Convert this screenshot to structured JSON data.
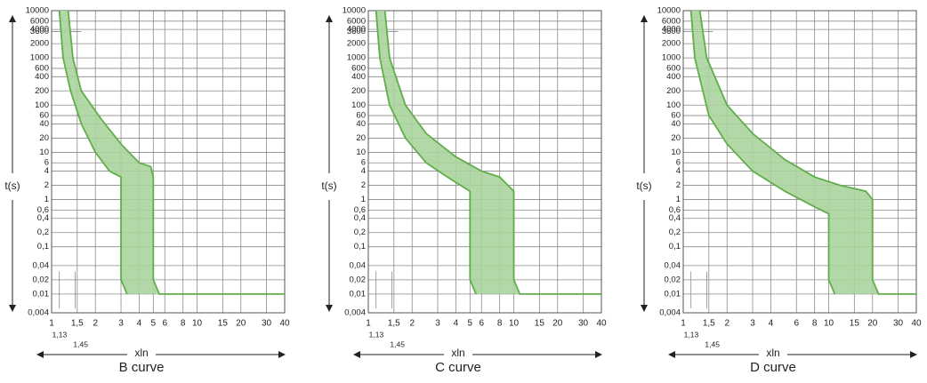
{
  "chart_data": [
    {
      "type": "band",
      "title": "B curve",
      "xlabel": "xln",
      "ylabel": "t(s)",
      "xscale": "log",
      "yscale": "log",
      "xlim": [
        1,
        40
      ],
      "ylim": [
        0.004,
        10000
      ],
      "xticks": [
        1,
        {
          "value": 1.5,
          "label": "1,5"
        },
        2,
        3,
        4,
        5,
        6,
        8,
        10,
        15,
        20,
        30,
        40
      ],
      "xticks_extra": [
        {
          "value": 1.13,
          "label": "1,13"
        },
        {
          "value": 1.45,
          "label": "1,45"
        }
      ],
      "yticks": [
        10000,
        6000,
        4000,
        2000,
        1000,
        600,
        400,
        200,
        100,
        60,
        40,
        20,
        10,
        6,
        4,
        2,
        1,
        {
          "value": 0.6,
          "label": "0,6"
        },
        {
          "value": 0.4,
          "label": "0,4"
        },
        {
          "value": 0.2,
          "label": "0,2"
        },
        {
          "value": 0.1,
          "label": "0,1"
        },
        {
          "value": 0.04,
          "label": "0,04"
        },
        {
          "value": 0.02,
          "label": "0,02"
        },
        {
          "value": 0.01,
          "label": "0,01"
        },
        {
          "value": 0.004,
          "label": "0,004"
        }
      ],
      "y_marker": {
        "value": 3600,
        "label": "3600",
        "x_end": 1.6
      },
      "color": "#5fae4a",
      "fill": "#a8d49c",
      "grid": true,
      "lower": {
        "x": [
          1.13,
          1.2,
          1.35,
          1.6,
          2,
          2.5,
          3,
          3,
          3.3
        ],
        "y": [
          10000,
          1000,
          200,
          40,
          10,
          4,
          3,
          0.02,
          0.01
        ]
      },
      "upper": {
        "x": [
          1.3,
          1.4,
          1.6,
          2.2,
          3,
          4,
          4.8,
          5,
          5,
          5.5,
          40
        ],
        "y": [
          10000,
          1000,
          200,
          50,
          15,
          6,
          5,
          3,
          0.02,
          0.01,
          0.01
        ]
      }
    },
    {
      "type": "band",
      "title": "C curve",
      "xlabel": "xln",
      "ylabel": "t(s)",
      "xscale": "log",
      "yscale": "log",
      "xlim": [
        1,
        40
      ],
      "ylim": [
        0.004,
        10000
      ],
      "xticks": [
        1,
        {
          "value": 1.5,
          "label": "1,5"
        },
        2,
        3,
        4,
        5,
        6,
        8,
        10,
        15,
        20,
        30,
        40
      ],
      "xticks_extra": [
        {
          "value": 1.13,
          "label": "1,13"
        },
        {
          "value": 1.45,
          "label": "1,45"
        }
      ],
      "yticks": [
        10000,
        6000,
        4000,
        2000,
        1000,
        600,
        400,
        200,
        100,
        60,
        40,
        20,
        10,
        6,
        4,
        2,
        1,
        {
          "value": 0.6,
          "label": "0,6"
        },
        {
          "value": 0.4,
          "label": "0,4"
        },
        {
          "value": 0.2,
          "label": "0,2"
        },
        {
          "value": 0.1,
          "label": "0,1"
        },
        {
          "value": 0.04,
          "label": "0,04"
        },
        {
          "value": 0.02,
          "label": "0,02"
        },
        {
          "value": 0.01,
          "label": "0,01"
        },
        {
          "value": 0.004,
          "label": "0,004"
        }
      ],
      "y_marker": {
        "value": 3600,
        "label": "3600",
        "x_end": 1.6
      },
      "color": "#5fae4a",
      "fill": "#a8d49c",
      "grid": true,
      "lower": {
        "x": [
          1.13,
          1.2,
          1.4,
          1.8,
          2.5,
          3.5,
          5,
          5,
          5.5
        ],
        "y": [
          10000,
          1000,
          100,
          20,
          6,
          3,
          1.5,
          0.02,
          0.01
        ]
      },
      "upper": {
        "x": [
          1.3,
          1.4,
          1.8,
          2.5,
          4,
          6,
          8,
          10,
          10,
          11,
          40
        ],
        "y": [
          10000,
          1000,
          100,
          25,
          8,
          4,
          3,
          1.5,
          0.02,
          0.01,
          0.01
        ]
      }
    },
    {
      "type": "band",
      "title": "D curve",
      "xlabel": "xln",
      "ylabel": "t(s)",
      "xscale": "log",
      "yscale": "log",
      "xlim": [
        1,
        40
      ],
      "ylim": [
        0.004,
        10000
      ],
      "xticks": [
        1,
        {
          "value": 1.5,
          "label": "1,5"
        },
        2,
        3,
        4,
        6,
        8,
        10,
        15,
        20,
        30,
        40
      ],
      "xticks_extra": [
        {
          "value": 1.13,
          "label": "1,13"
        },
        {
          "value": 1.45,
          "label": "1,45"
        }
      ],
      "yticks": [
        10000,
        6000,
        4000,
        2000,
        1000,
        600,
        400,
        200,
        100,
        60,
        40,
        20,
        10,
        6,
        4,
        2,
        1,
        {
          "value": 0.6,
          "label": "0,6"
        },
        {
          "value": 0.4,
          "label": "0,4"
        },
        {
          "value": 0.2,
          "label": "0,2"
        },
        {
          "value": 0.1,
          "label": "0,1"
        },
        {
          "value": 0.04,
          "label": "0,04"
        },
        {
          "value": 0.02,
          "label": "0,02"
        },
        {
          "value": 0.01,
          "label": "0,01"
        },
        {
          "value": 0.004,
          "label": "0,004"
        }
      ],
      "y_marker": {
        "value": 3600,
        "label": "3600",
        "x_end": 1.6
      },
      "color": "#5fae4a",
      "fill": "#a8d49c",
      "grid": true,
      "lower": {
        "x": [
          1.13,
          1.2,
          1.5,
          2,
          3,
          5,
          8,
          10,
          10,
          11
        ],
        "y": [
          10000,
          1000,
          60,
          15,
          4,
          1.5,
          0.7,
          0.5,
          0.02,
          0.01
        ]
      },
      "upper": {
        "x": [
          1.3,
          1.45,
          2,
          3,
          5,
          8,
          12,
          18,
          20,
          20,
          22,
          40
        ],
        "y": [
          10000,
          1000,
          100,
          25,
          7,
          3,
          2,
          1.5,
          1,
          0.02,
          0.01,
          0.01
        ]
      }
    }
  ]
}
